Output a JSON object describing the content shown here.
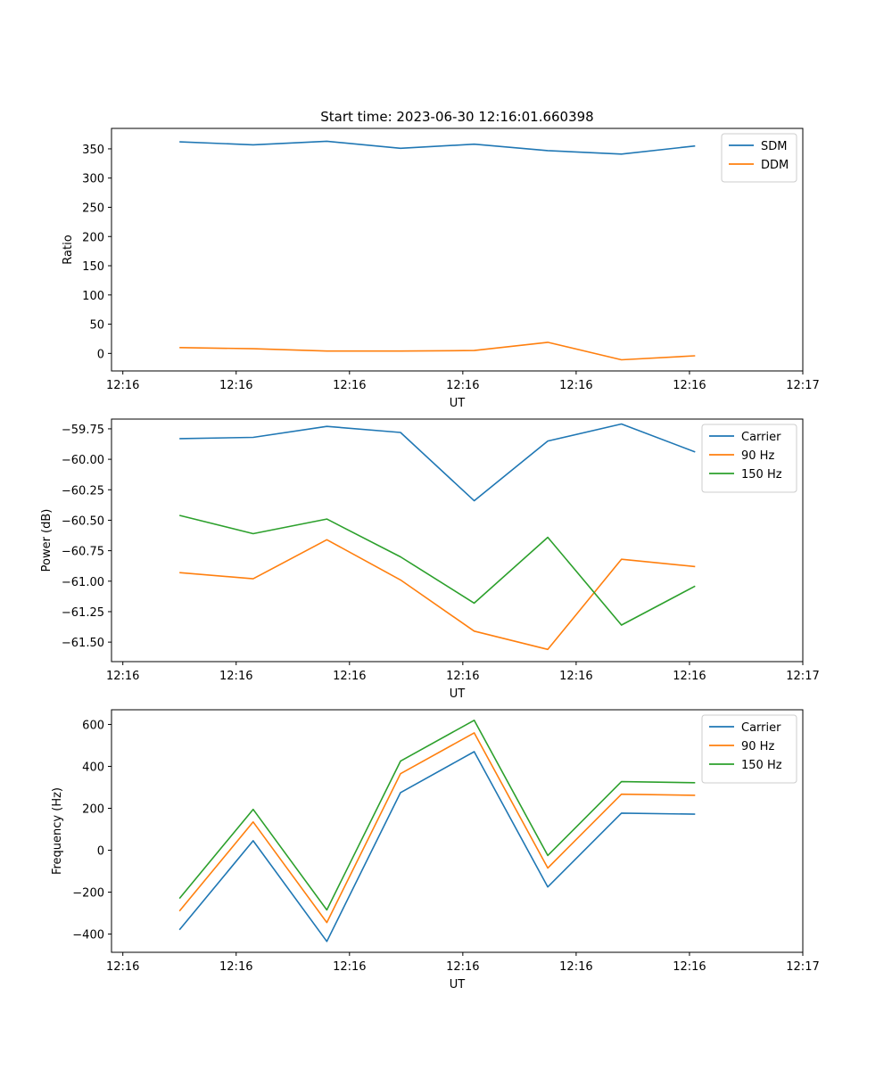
{
  "chart_data": [
    {
      "type": "line",
      "title": "Start time: 2023-06-30 12:16:01.660398",
      "xlabel": "UT",
      "ylabel": "Ratio",
      "x_tick_labels": [
        "12:16",
        "12:16",
        "12:16",
        "12:16",
        "12:16",
        "12:16",
        "12:17"
      ],
      "x_index": [
        0.5,
        1.15,
        1.8,
        2.45,
        3.1,
        3.75,
        4.4,
        5.05
      ],
      "xlim": [
        -0.1,
        6.0
      ],
      "ylim": [
        -30,
        385
      ],
      "yticks": [
        0,
        50,
        100,
        150,
        200,
        250,
        300,
        350
      ],
      "y_tick_labels": [
        "0",
        "50",
        "100",
        "150",
        "200",
        "250",
        "300",
        "350"
      ],
      "legend": "top-right",
      "grid": false,
      "series": [
        {
          "name": "SDM",
          "color": "#1f77b4",
          "values": [
            362,
            357,
            363,
            351,
            358,
            347,
            341,
            355
          ]
        },
        {
          "name": "DDM",
          "color": "#ff7f0e",
          "values": [
            10,
            8,
            4,
            4,
            5,
            19,
            -11,
            -4
          ]
        }
      ]
    },
    {
      "type": "line",
      "title": "",
      "xlabel": "UT",
      "ylabel": "Power (dB)",
      "x_tick_labels": [
        "12:16",
        "12:16",
        "12:16",
        "12:16",
        "12:16",
        "12:16",
        "12:17"
      ],
      "x_index": [
        0.5,
        1.15,
        1.8,
        2.45,
        3.1,
        3.75,
        4.4,
        5.05
      ],
      "xlim": [
        -0.1,
        6.0
      ],
      "ylim": [
        -61.66,
        -59.67
      ],
      "yticks": [
        -61.5,
        -61.25,
        -61.0,
        -60.75,
        -60.5,
        -60.25,
        -60.0,
        -59.75
      ],
      "y_tick_labels": [
        "−61.50",
        "−61.25",
        "−61.00",
        "−60.75",
        "−60.50",
        "−60.25",
        "−60.00",
        "−59.75"
      ],
      "legend": "top-right",
      "grid": false,
      "series": [
        {
          "name": "Carrier",
          "color": "#1f77b4",
          "values": [
            -59.83,
            -59.82,
            -59.73,
            -59.78,
            -60.34,
            -59.85,
            -59.71,
            -59.94
          ]
        },
        {
          "name": "90 Hz",
          "color": "#ff7f0e",
          "values": [
            -60.93,
            -60.98,
            -60.66,
            -60.99,
            -61.41,
            -61.56,
            -60.82,
            -60.88
          ]
        },
        {
          "name": "150 Hz",
          "color": "#2ca02c",
          "values": [
            -60.46,
            -60.61,
            -60.49,
            -60.8,
            -61.18,
            -60.64,
            -61.36,
            -61.04
          ]
        }
      ]
    },
    {
      "type": "line",
      "title": "",
      "xlabel": "UT",
      "ylabel": "Frequency (Hz)",
      "x_tick_labels": [
        "12:16",
        "12:16",
        "12:16",
        "12:16",
        "12:16",
        "12:16",
        "12:17"
      ],
      "x_index": [
        0.5,
        1.15,
        1.8,
        2.45,
        3.1,
        3.75,
        4.4,
        5.05
      ],
      "xlim": [
        -0.1,
        6.0
      ],
      "ylim": [
        -487,
        670
      ],
      "yticks": [
        -400,
        -200,
        0,
        200,
        400,
        600
      ],
      "y_tick_labels": [
        "−400",
        "−200",
        "0",
        "200",
        "400",
        "600"
      ],
      "legend": "top-right",
      "grid": false,
      "series": [
        {
          "name": "Carrier",
          "color": "#1f77b4",
          "values": [
            -380,
            45,
            -435,
            275,
            470,
            -175,
            177,
            172
          ]
        },
        {
          "name": "90 Hz",
          "color": "#ff7f0e",
          "values": [
            -290,
            135,
            -345,
            365,
            560,
            -85,
            267,
            262
          ]
        },
        {
          "name": "150 Hz",
          "color": "#2ca02c",
          "values": [
            -230,
            195,
            -285,
            425,
            620,
            -25,
            327,
            322
          ]
        }
      ]
    }
  ]
}
